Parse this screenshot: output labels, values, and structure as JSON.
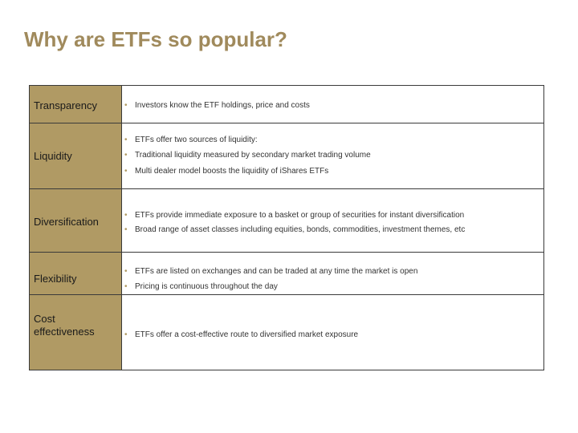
{
  "title": "Why are ETFs so popular?",
  "rows": [
    {
      "category": "Transparency",
      "bullets": [
        "Investors know the ETF holdings, price and costs"
      ]
    },
    {
      "category": "Liquidity",
      "bullets": [
        "ETFs offer two sources of liquidity:",
        "Traditional liquidity measured by secondary market trading volume",
        "Multi dealer model boosts the liquidity of iShares ETFs"
      ]
    },
    {
      "category": "Diversification",
      "bullets": [
        "ETFs provide immediate exposure to a basket or group of securities for instant diversification",
        "Broad range of asset classes including equities, bonds, commodities, investment themes, etc"
      ]
    },
    {
      "category": "Flexibility",
      "bullets": [
        "ETFs are listed on exchanges and can be traded at any time the market is open",
        "Pricing is continuous throughout the day"
      ]
    },
    {
      "category_line1": "Cost",
      "category_line2": "effectiveness",
      "bullets": [
        "ETFs offer a cost-effective route to diversified market exposure"
      ]
    }
  ],
  "bullet_glyph": "•",
  "colors": {
    "accent": "#b09a64",
    "title": "#a08a5c",
    "border": "#3a3a3a"
  }
}
